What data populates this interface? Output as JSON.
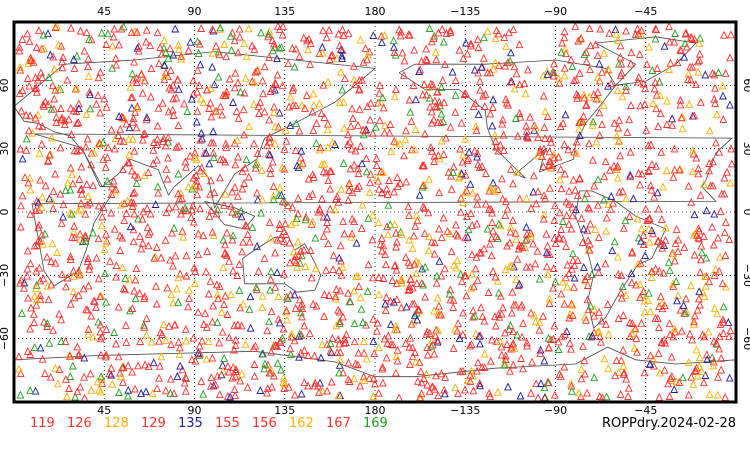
{
  "map": {
    "projection": "cylindrical",
    "lon_center": 180,
    "lon_range": [
      0,
      360
    ],
    "lat_range": [
      -90,
      90
    ],
    "grid": "dotted",
    "marker": "triangle",
    "top_lon_labels": [
      "45",
      "90",
      "135",
      "180",
      "−135",
      "−90",
      "−45"
    ],
    "bottom_lon_labels": [
      "45",
      "90",
      "135",
      "180",
      "−135",
      "−90",
      "−45"
    ],
    "left_lat_labels": [
      "60",
      "30",
      "0",
      "−30",
      "−60"
    ],
    "right_lat_labels": [
      "60",
      "30",
      "0",
      "−30",
      "−60"
    ]
  },
  "legend": [
    {
      "label": "119",
      "color": "#ff3030"
    },
    {
      "label": "126",
      "color": "#ff3030"
    },
    {
      "label": "128",
      "color": "#ffb000"
    },
    {
      "label": "129",
      "color": "#ff3030"
    },
    {
      "label": "135",
      "color": "#1a1aa0"
    },
    {
      "label": "155",
      "color": "#ff3030"
    },
    {
      "label": "156",
      "color": "#ff3030"
    },
    {
      "label": "162",
      "color": "#ffb000"
    },
    {
      "label": "167",
      "color": "#ff3030"
    },
    {
      "label": "169",
      "color": "#20a020"
    }
  ],
  "caption": "ROPPdry.2024-02-28"
}
